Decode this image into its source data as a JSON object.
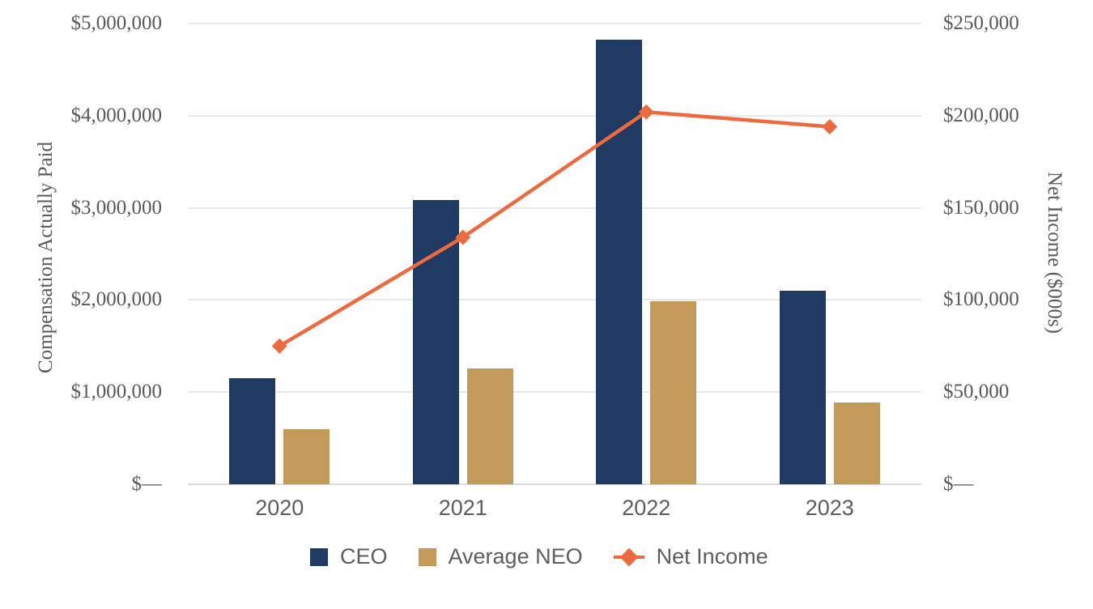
{
  "chart_data": {
    "type": "bar",
    "subtype": "combo-bar-line-dual-axis",
    "categories": [
      "2020",
      "2021",
      "2022",
      "2023"
    ],
    "series": [
      {
        "name": "CEO",
        "type": "bar",
        "axis": "left",
        "marker": "square",
        "color": "#1f3a63",
        "values": [
          1150000,
          3080000,
          4820000,
          2100000
        ]
      },
      {
        "name": "Average NEO",
        "type": "bar",
        "axis": "left",
        "marker": "square",
        "color": "#c49a5b",
        "values": [
          600000,
          1260000,
          1990000,
          890000
        ]
      },
      {
        "name": "Net Income",
        "type": "line",
        "axis": "right",
        "marker": "diamond",
        "color": "#ed6a3e",
        "values": [
          75000,
          134000,
          202000,
          194000
        ]
      }
    ],
    "left_axis": {
      "label": "Compensation Actually Paid",
      "range": [
        0,
        5000000
      ],
      "tick_step": 1000000,
      "tick_labels": [
        "$5,000,000",
        "$4,000,000",
        "$3,000,000",
        "$2,000,000",
        "$1,000,000",
        "$—"
      ]
    },
    "right_axis": {
      "label": "Net Income ($000s)",
      "range": [
        0,
        250000
      ],
      "tick_step": 50000,
      "tick_labels": [
        "$250,000",
        "$200,000",
        "$150,000",
        "$100,000",
        "$50,000",
        "$—"
      ]
    },
    "grid": true,
    "legend_position": "bottom",
    "colors": {
      "grid": "#e8e8e8",
      "axis_line": "#dcdcdc",
      "serif_text": "#595959",
      "sans_text": "#5d5d5d"
    }
  },
  "legend": {
    "items": [
      {
        "label": "CEO"
      },
      {
        "label": "Average NEO"
      },
      {
        "label": "Net Income"
      }
    ]
  }
}
